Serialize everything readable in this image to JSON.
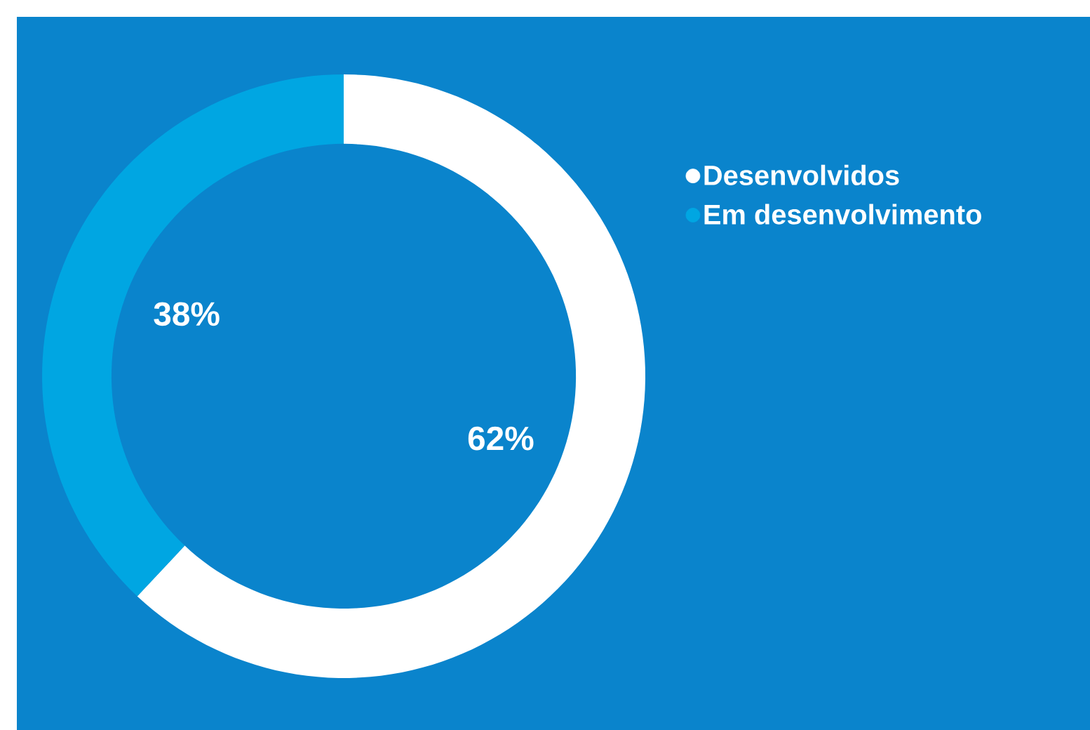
{
  "chart_data": {
    "type": "donut",
    "categories": [
      "Desenvolvidos",
      "Em desenvolvimento"
    ],
    "values": [
      62,
      38
    ],
    "colors": [
      "#ffffff",
      "#00a6e2"
    ],
    "value_labels": [
      "62%",
      "38%"
    ],
    "legend": "right"
  }
}
